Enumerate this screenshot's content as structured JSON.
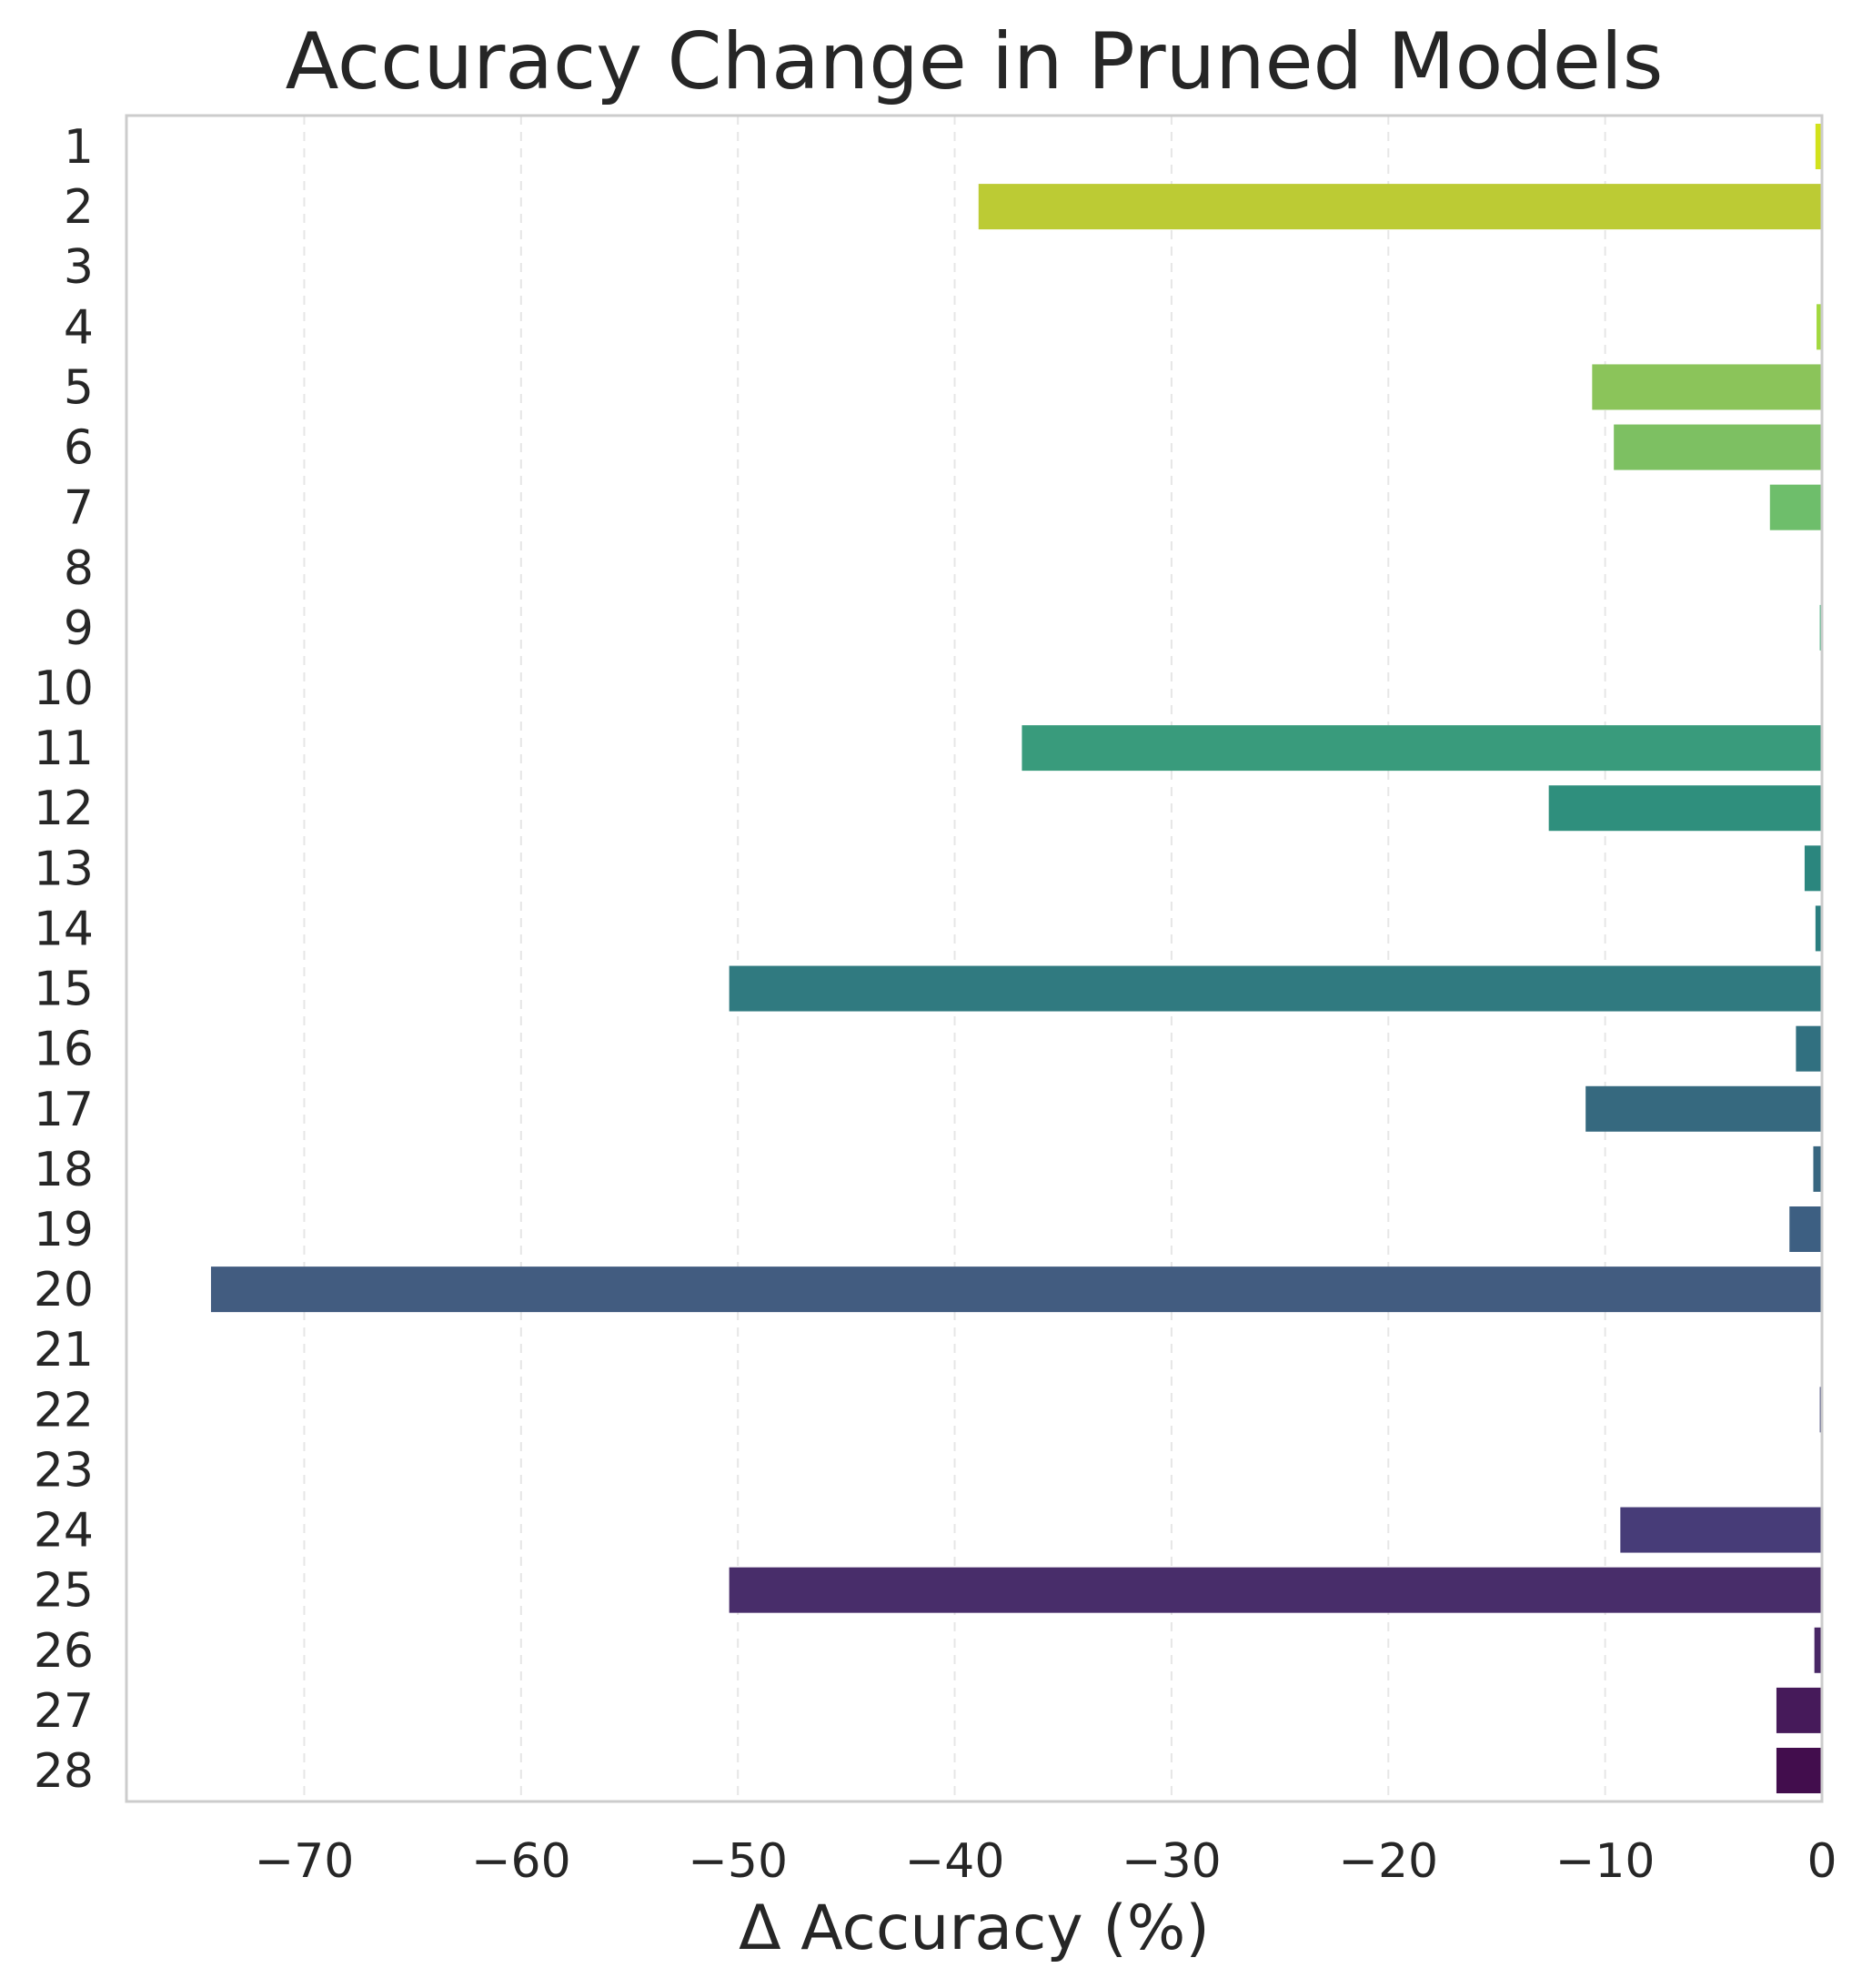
{
  "chart_data": {
    "type": "bar",
    "orientation": "horizontal",
    "title": "Accuracy Change in Pruned Models",
    "xlabel": "Δ Accuracy (%)",
    "ylabel": "",
    "xlim": [
      -78.2,
      0
    ],
    "xticks": [
      -70,
      -60,
      -50,
      -40,
      -30,
      -20,
      -10,
      0
    ],
    "xtick_labels": [
      "−70",
      "−60",
      "−50",
      "−40",
      "−30",
      "−20",
      "−10",
      "0"
    ],
    "grid": "x-dashed",
    "categories": [
      "1",
      "2",
      "3",
      "4",
      "5",
      "6",
      "7",
      "8",
      "9",
      "10",
      "11",
      "12",
      "13",
      "14",
      "15",
      "16",
      "17",
      "18",
      "19",
      "20",
      "21",
      "22",
      "23",
      "24",
      "25",
      "26",
      "27",
      "28"
    ],
    "values": [
      -0.3,
      -38.9,
      -0.05,
      -0.25,
      -10.6,
      -9.6,
      -2.4,
      0,
      -0.1,
      0,
      -36.9,
      -12.6,
      -0.8,
      -0.3,
      -50.4,
      -1.2,
      -10.9,
      -0.4,
      -1.5,
      -74.3,
      0,
      -0.1,
      0,
      -9.3,
      -50.4,
      -0.35,
      -2.1,
      -2.1
    ],
    "colors": [
      "#d2e21b",
      "#bccb34",
      "#b0d63a",
      "#a2d83f",
      "#8bc45a",
      "#7dc062",
      "#6ebe6b",
      "#59b971",
      "#41b07a",
      "#35a67c",
      "#399b7c",
      "#2f8f7d",
      "#2b867e",
      "#2a7e7f",
      "#307a80",
      "#317080",
      "#36697f",
      "#386680",
      "#3d5f82",
      "#425c80",
      "#455481",
      "#464a7e",
      "#47427a",
      "#473c78",
      "#482d6a",
      "#482665",
      "#461a5a",
      "#420d4d"
    ]
  }
}
